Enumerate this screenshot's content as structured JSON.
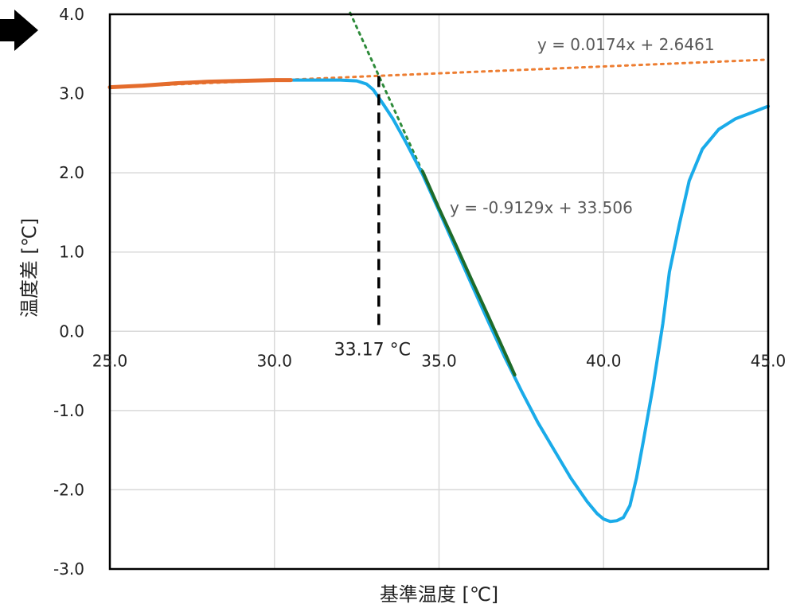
{
  "chart_data": {
    "type": "line",
    "xlabel": "基準温度 [℃]",
    "ylabel": "温度差 [℃]",
    "xlim": [
      25.0,
      45.0
    ],
    "ylim": [
      -3.0,
      4.0
    ],
    "x_ticks": [
      "25.0",
      "30.0",
      "35.0",
      "40.0",
      "45.0"
    ],
    "y_ticks": [
      "-3.0",
      "-2.0",
      "-1.0",
      "0.0",
      "1.0",
      "2.0",
      "3.0",
      "4.0"
    ],
    "grid": true,
    "colors": {
      "main_curve": "#1aabe9",
      "baseline_segment": "#e46c2c",
      "slope_segment": "#1e6b29",
      "baseline_trend": "#ed7d31",
      "slope_trend": "#2e8b3a",
      "marker": "#000000",
      "grid": "#d9d9d9",
      "axis": "#000000"
    },
    "series": [
      {
        "role": "measured",
        "x": [
          25.0,
          26.0,
          27.0,
          28.0,
          29.0,
          30.0,
          31.0,
          32.0,
          32.5,
          32.8,
          33.0,
          33.3,
          33.6,
          34.0,
          34.5,
          35.0,
          35.5,
          36.0,
          36.5,
          37.0,
          37.5,
          38.0,
          38.5,
          39.0,
          39.5,
          39.8,
          40.0,
          40.2,
          40.4,
          40.6,
          40.8,
          41.0,
          41.2,
          41.5,
          41.8,
          42.0,
          42.3,
          42.6,
          43.0,
          43.5,
          44.0,
          44.5,
          45.0
        ],
        "y": [
          3.08,
          3.1,
          3.13,
          3.15,
          3.16,
          3.17,
          3.17,
          3.17,
          3.16,
          3.12,
          3.05,
          2.87,
          2.68,
          2.38,
          1.98,
          1.52,
          1.05,
          0.58,
          0.12,
          -0.33,
          -0.75,
          -1.15,
          -1.5,
          -1.85,
          -2.15,
          -2.3,
          -2.37,
          -2.4,
          -2.39,
          -2.35,
          -2.2,
          -1.85,
          -1.4,
          -0.7,
          0.1,
          0.75,
          1.35,
          1.9,
          2.3,
          2.55,
          2.68,
          2.76,
          2.84
        ]
      },
      {
        "role": "baseline-fit-range",
        "x": [
          25.0,
          26.0,
          27.0,
          28.0,
          29.0,
          30.0,
          30.5
        ],
        "y": [
          3.08,
          3.1,
          3.13,
          3.15,
          3.16,
          3.17,
          3.17
        ]
      },
      {
        "role": "slope-fit-range",
        "x": [
          34.5,
          35.0,
          35.5,
          36.0,
          36.5,
          37.0,
          37.3
        ],
        "y": [
          2.02,
          1.55,
          1.1,
          0.64,
          0.19,
          -0.27,
          -0.55
        ]
      }
    ],
    "trendlines": [
      {
        "label": "y = 0.0174x + 2.6461",
        "slope": 0.0174,
        "intercept": 2.6461,
        "x_range": [
          25.0,
          45.0
        ]
      },
      {
        "label": "y = -0.9129x + 33.506",
        "slope": -0.9129,
        "intercept": 33.506,
        "x_range": [
          32.3,
          34.5
        ]
      }
    ],
    "annotations": [
      {
        "type": "vertical-dashed",
        "x": 33.17,
        "label": "33.17 °C"
      }
    ]
  }
}
